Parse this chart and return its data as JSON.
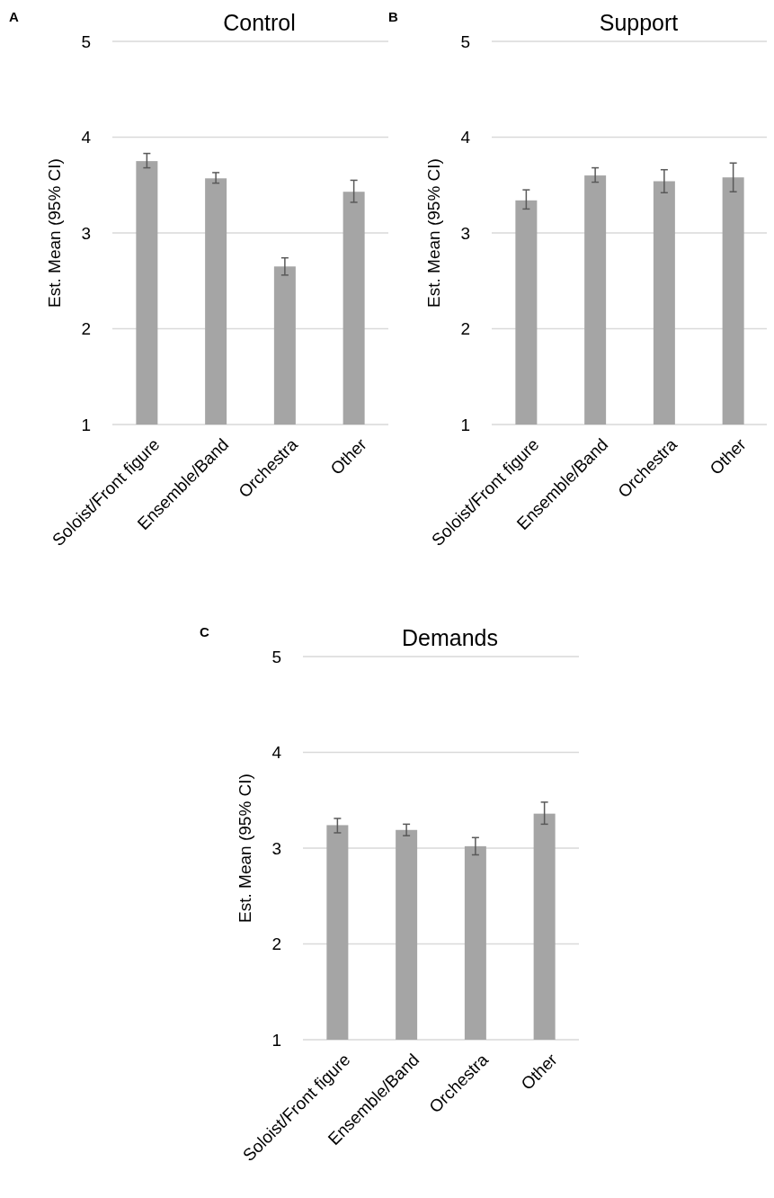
{
  "chart_data": [
    {
      "type": "bar",
      "title": "Control",
      "ylabel": "Est. Mean (95% CI)",
      "annotations": [
        "A"
      ],
      "categories": [
        "Soloist/Front figure",
        "Ensemble/Band",
        "Orchestra",
        "Other"
      ],
      "values": [
        3.75,
        3.57,
        2.65,
        3.43
      ],
      "errors": [
        [
          3.68,
          3.83
        ],
        [
          3.52,
          3.63
        ],
        [
          2.56,
          2.74
        ],
        [
          3.32,
          3.55
        ]
      ],
      "color": "#a5a5a5",
      "ylim": [
        1,
        5
      ],
      "yticks": [
        1,
        2,
        3,
        4,
        5
      ],
      "grid": "y"
    },
    {
      "type": "bar",
      "title": "Support",
      "ylabel": "Est. Mean (95% CI)",
      "annotations": [
        "B"
      ],
      "categories": [
        "Soloist/Front figure",
        "Ensemble/Band",
        "Orchestra",
        "Other"
      ],
      "values": [
        3.34,
        3.6,
        3.54,
        3.58
      ],
      "errors": [
        [
          3.25,
          3.45
        ],
        [
          3.53,
          3.68
        ],
        [
          3.42,
          3.66
        ],
        [
          3.43,
          3.73
        ]
      ],
      "color": "#a5a5a5",
      "ylim": [
        1,
        5
      ],
      "yticks": [
        1,
        2,
        3,
        4,
        5
      ],
      "grid": "y"
    },
    {
      "type": "bar",
      "title": "Demands",
      "ylabel": "Est. Mean (95% CI)",
      "annotations": [
        "C"
      ],
      "categories": [
        "Soloist/Front figure",
        "Ensemble/Band",
        "Orchestra",
        "Other"
      ],
      "values": [
        3.24,
        3.19,
        3.02,
        3.36
      ],
      "errors": [
        [
          3.16,
          3.31
        ],
        [
          3.13,
          3.25
        ],
        [
          2.93,
          3.11
        ],
        [
          3.25,
          3.48
        ]
      ],
      "color": "#a5a5a5",
      "ylim": [
        1,
        5
      ],
      "yticks": [
        1,
        2,
        3,
        4,
        5
      ],
      "grid": "y"
    }
  ]
}
